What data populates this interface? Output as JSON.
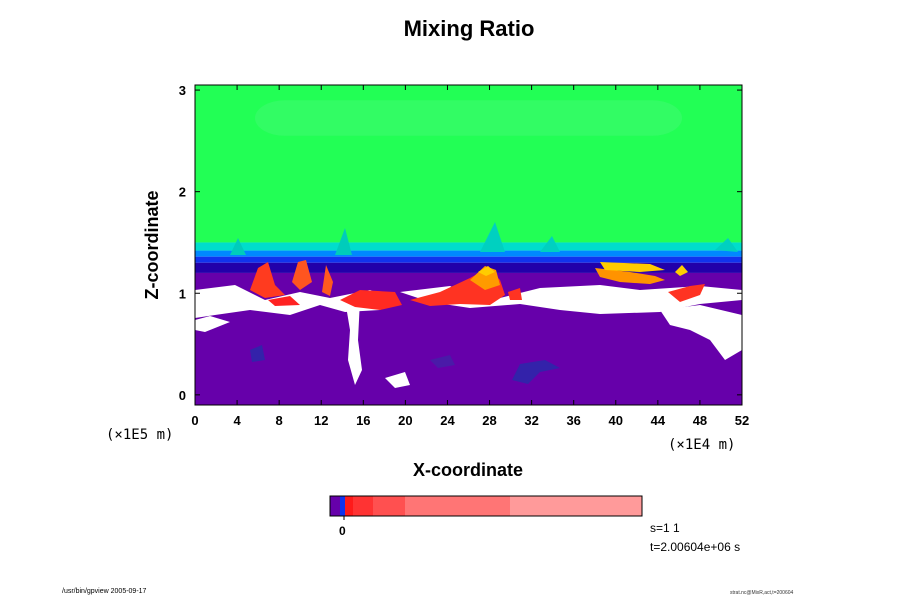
{
  "chart_data": {
    "type": "heatmap",
    "title": "Mixing Ratio",
    "xlabel": "X-coordinate",
    "ylabel": "Z-coordinate",
    "x_unit_left": "(×1E5 m)",
    "x_unit_right": "(×1E4 m)",
    "x_ticks": [
      "0",
      "4",
      "8",
      "12",
      "16",
      "20",
      "24",
      "28",
      "32",
      "36",
      "40",
      "44",
      "48",
      "52"
    ],
    "y_ticks": [
      "0",
      "1",
      "2",
      "3"
    ],
    "xlim": [
      0,
      52
    ],
    "ylim": [
      -0.1,
      3.05
    ],
    "layers": [
      {
        "z_from": 1.5,
        "z_to": 3.05,
        "color": "#22ff55",
        "note_color2": "#33ee66"
      },
      {
        "z_from": 1.42,
        "z_to": 1.5,
        "color": "#00ddcc"
      },
      {
        "z_from": 1.36,
        "z_to": 1.42,
        "color": "#0088ff"
      },
      {
        "z_from": 1.3,
        "z_to": 1.36,
        "color": "#1133ee"
      },
      {
        "z_from": 1.2,
        "z_to": 1.3,
        "color": "#2200aa"
      },
      {
        "z_from": -0.1,
        "z_to": 1.2,
        "color": "#6600aa"
      }
    ],
    "colorbar": {
      "tick_labels": [
        "0"
      ],
      "colors": [
        "#6600aa",
        "#1133ee",
        "#ff1a1a",
        "#ff3333",
        "#ff5050",
        "#ff7575",
        "#ff9a9a"
      ]
    }
  },
  "annotations": {
    "step": "s=1 1",
    "time": "t=2.00604e+06 s"
  },
  "footer": {
    "left": "/usr/bin/gpview 2005-09-17",
    "right": "strat.nc@MixR,act,t=200604"
  },
  "colors": {
    "green": "#22ff55",
    "cyan": "#00ddcc",
    "blue": "#1133ee",
    "darkblue": "#2200aa",
    "purple": "#6600aa",
    "red": "#ff2222",
    "orange": "#ff8800",
    "yellow": "#ffcc00"
  }
}
